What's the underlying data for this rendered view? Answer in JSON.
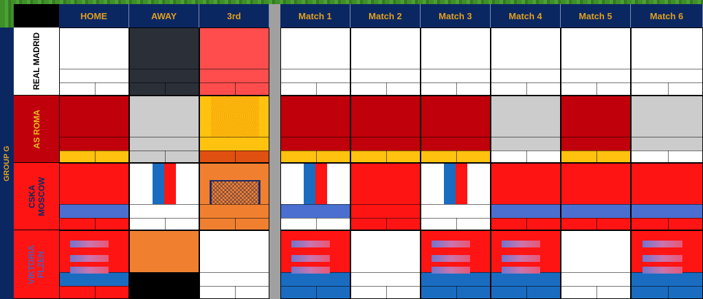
{
  "headers": {
    "home": "HOME",
    "away": "AWAY",
    "third": "3rd",
    "matches": [
      "Match 1",
      "Match 2",
      "Match 3",
      "Match 4",
      "Match 5",
      "Match 6"
    ]
  },
  "group_label": "GROUP G",
  "teams": [
    {
      "name": "REAL MADRID",
      "text_color": "#000000",
      "bg": "#ffffff"
    },
    {
      "name": "AS ROMA",
      "text_color": "#e8b820",
      "bg": "#c0000b"
    },
    {
      "name": "CSKA\nMOSCOW",
      "text_color": "#0b2762",
      "bg": "#ff1414"
    },
    {
      "name": "VIKTORIA\nPLZEN",
      "text_color": "#5a5ab0",
      "bg": "#ff1414"
    }
  ],
  "colors": {
    "header_bg": "#0b2762",
    "header_text": "#e0a020",
    "separator": "#a0a0a0"
  },
  "icons": [
    "goal-net-icon"
  ]
}
